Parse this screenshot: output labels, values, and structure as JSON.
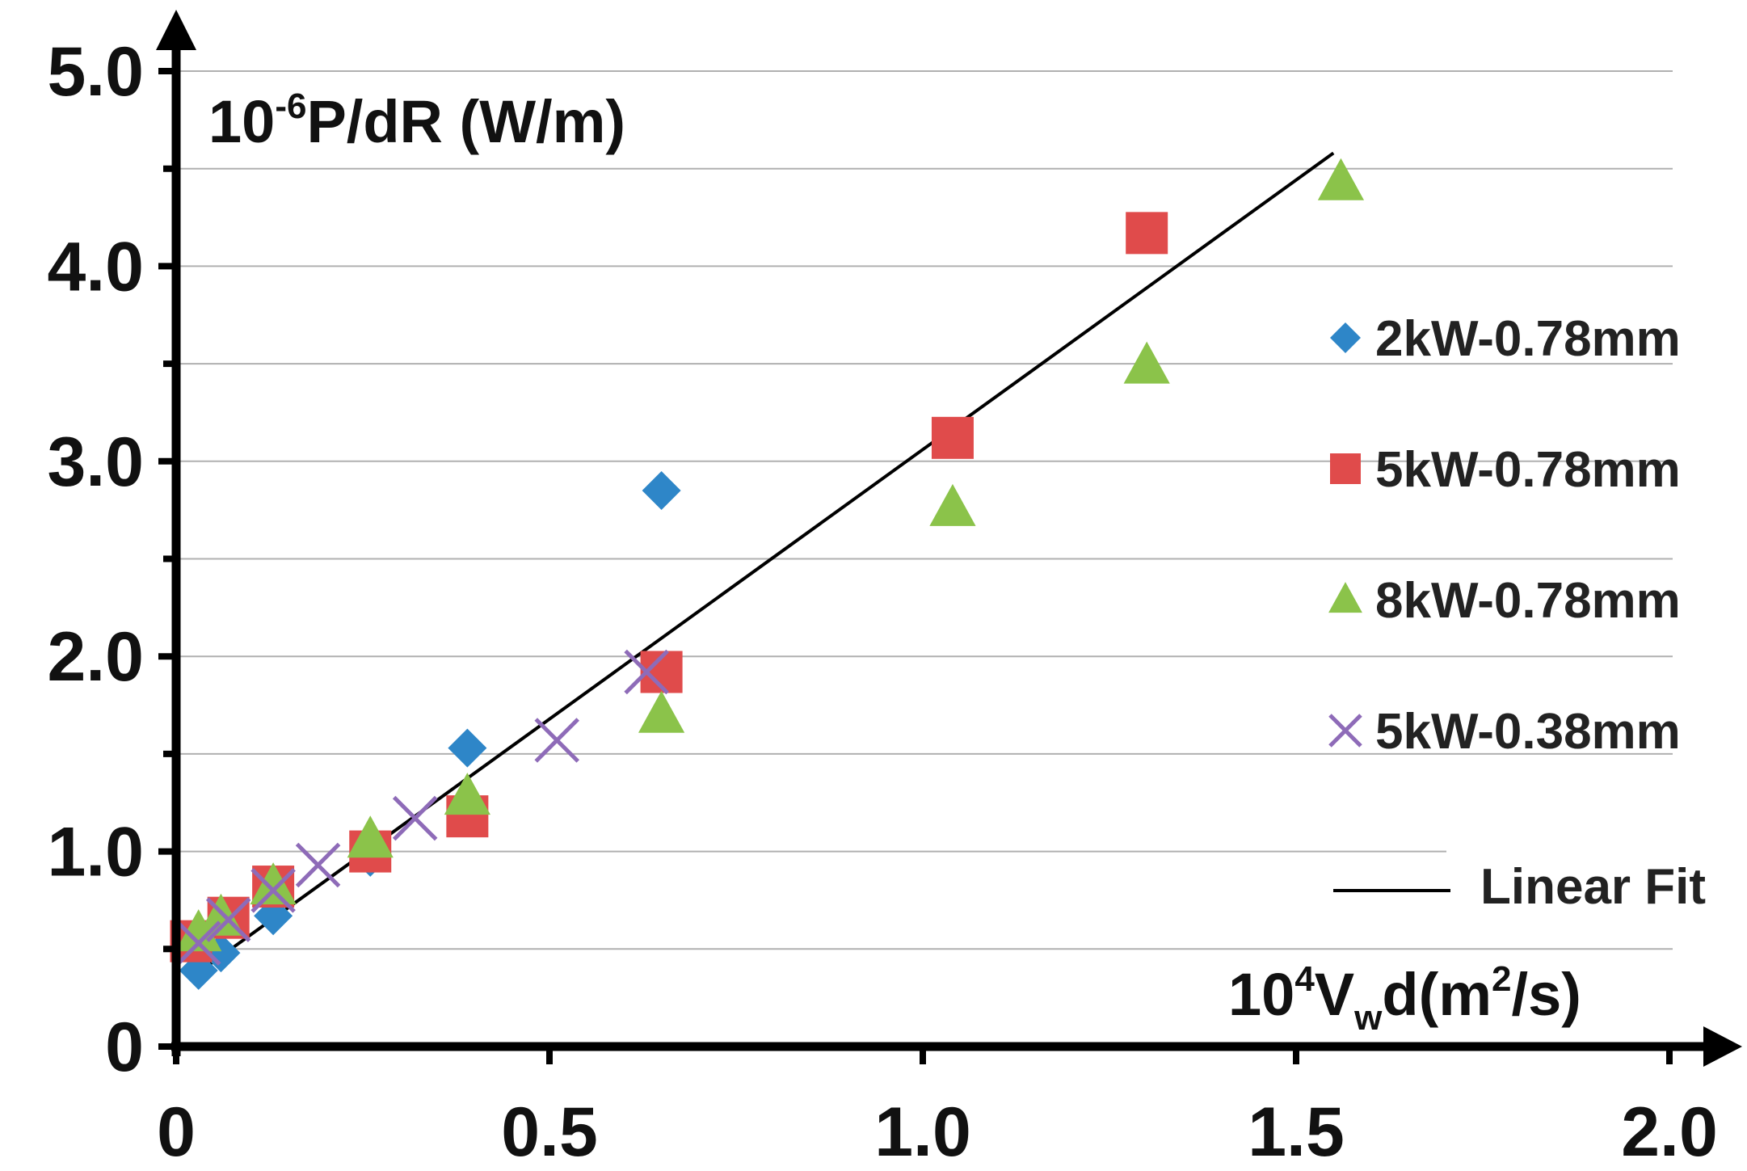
{
  "chart_data": {
    "type": "scatter",
    "title": "",
    "ylabel": {
      "prefix": "10",
      "sup": "-6",
      "rest": "P/dR (W/m)"
    },
    "xlabel": {
      "prefix": "10",
      "sup": "4",
      "main": "V",
      "sub": "w",
      "rest1": "d(m",
      "sup2": "2",
      "rest2": "/s)"
    },
    "xlim": [
      0,
      2.0
    ],
    "ylim": [
      0,
      5.0
    ],
    "xticks": [
      0,
      0.5,
      1.0,
      1.5,
      2.0
    ],
    "xtick_labels": [
      "0",
      "0.5",
      "1.0",
      "1.5",
      "2.0"
    ],
    "yticks": [
      0,
      1.0,
      2.0,
      3.0,
      4.0,
      5.0
    ],
    "ytick_labels": [
      "0",
      "1.0",
      "2.0",
      "3.0",
      "4.0",
      "5.0"
    ],
    "grid": "horizontal every 0.5",
    "legend_position": "right",
    "series": [
      {
        "name": "2kW-0.78mm",
        "marker": "diamond",
        "color": "#2E86C8",
        "x": [
          0.03,
          0.06,
          0.13,
          0.26,
          0.39,
          0.65
        ],
        "y": [
          0.39,
          0.48,
          0.67,
          0.97,
          1.53,
          2.85
        ]
      },
      {
        "name": "5kW-0.78mm",
        "marker": "square",
        "color": "#E04B4B",
        "x": [
          0.02,
          0.07,
          0.13,
          0.26,
          0.39,
          0.65,
          1.04,
          1.3
        ],
        "y": [
          0.54,
          0.66,
          0.82,
          1.0,
          1.18,
          1.92,
          3.12,
          4.17
        ]
      },
      {
        "name": "8kW-0.78mm",
        "marker": "triangle",
        "color": "#8BC34A",
        "x": [
          0.03,
          0.06,
          0.13,
          0.26,
          0.39,
          0.65,
          1.04,
          1.3,
          1.56
        ],
        "y": [
          0.58,
          0.66,
          0.82,
          1.06,
          1.28,
          1.7,
          2.76,
          3.49,
          4.43
        ]
      },
      {
        "name": "5kW-0.38mm",
        "marker": "x",
        "color": "#8E6BB8",
        "x": [
          0.03,
          0.07,
          0.13,
          0.19,
          0.32,
          0.51,
          0.63
        ],
        "y": [
          0.53,
          0.65,
          0.8,
          0.93,
          1.17,
          1.57,
          1.92
        ]
      },
      {
        "name": "Linear Fit",
        "marker": "line",
        "color": "#000000",
        "x": [
          0.03,
          1.55
        ],
        "y": [
          0.38,
          4.58
        ]
      }
    ]
  }
}
